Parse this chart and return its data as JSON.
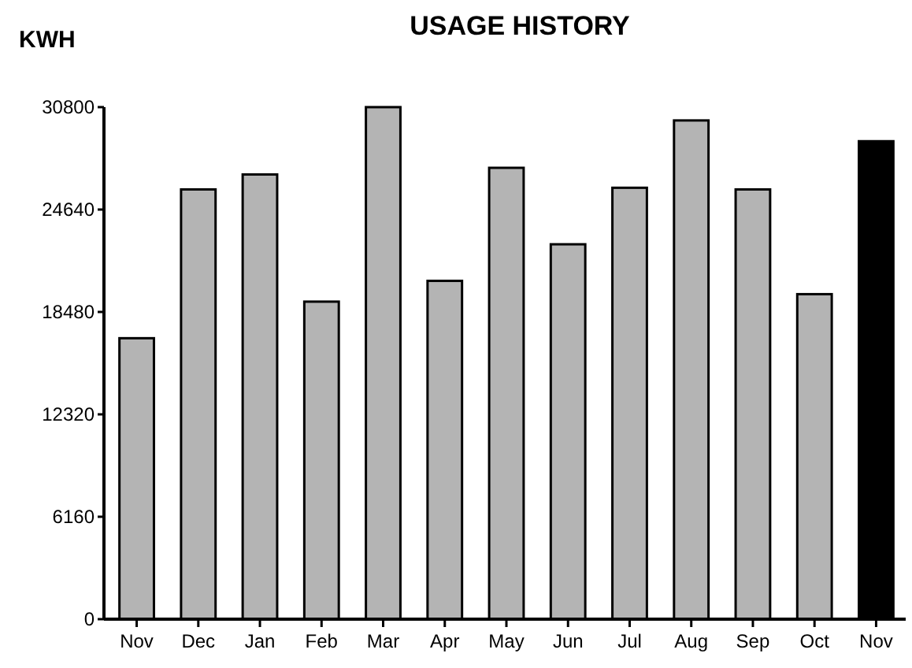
{
  "chart_data": {
    "type": "bar",
    "title": "USAGE HISTORY",
    "ylabel": "KWH",
    "categories": [
      "Nov",
      "Dec",
      "Jan",
      "Feb",
      "Mar",
      "Apr",
      "May",
      "Jun",
      "Jul",
      "Aug",
      "Sep",
      "Oct",
      "Nov"
    ],
    "values": [
      16900,
      25850,
      26750,
      19100,
      30800,
      20350,
      27150,
      22550,
      25950,
      30000,
      25850,
      19550,
      28750
    ],
    "colors": [
      "#b4b4b4",
      "#b4b4b4",
      "#b4b4b4",
      "#b4b4b4",
      "#b4b4b4",
      "#b4b4b4",
      "#b4b4b4",
      "#b4b4b4",
      "#b4b4b4",
      "#b4b4b4",
      "#b4b4b4",
      "#b4b4b4",
      "#000000"
    ],
    "ylim": [
      0,
      30800
    ],
    "yticks": [
      0,
      6160,
      12320,
      18480,
      24640,
      30800
    ],
    "grid": false
  }
}
